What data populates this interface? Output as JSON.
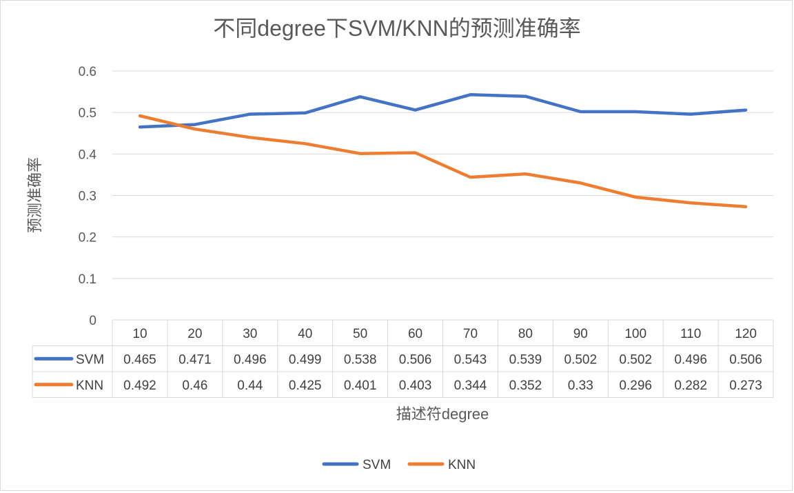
{
  "chart_data": {
    "type": "line",
    "title": "不同degree下SVM/KNN的预测准确率",
    "xlabel": "描述符degree",
    "ylabel": "预测准确率",
    "categories": [
      "10",
      "20",
      "30",
      "40",
      "50",
      "60",
      "70",
      "80",
      "90",
      "100",
      "110",
      "120"
    ],
    "ylim": [
      0,
      0.6
    ],
    "yticks": [
      "0",
      "0.1",
      "0.2",
      "0.3",
      "0.4",
      "0.5",
      "0.6"
    ],
    "grid": true,
    "legend_position": "bottom",
    "data_table": true,
    "series": [
      {
        "name": "SVM",
        "color": "#4472C4",
        "values": [
          0.465,
          0.471,
          0.496,
          0.499,
          0.538,
          0.506,
          0.543,
          0.539,
          0.502,
          0.502,
          0.496,
          0.506
        ],
        "labels": [
          "0.465",
          "0.471",
          "0.496",
          "0.499",
          "0.538",
          "0.506",
          "0.543",
          "0.539",
          "0.502",
          "0.502",
          "0.496",
          "0.506"
        ]
      },
      {
        "name": "KNN",
        "color": "#ED7D31",
        "values": [
          0.492,
          0.46,
          0.44,
          0.425,
          0.401,
          0.403,
          0.344,
          0.352,
          0.33,
          0.296,
          0.282,
          0.273
        ],
        "labels": [
          "0.492",
          "0.46",
          "0.44",
          "0.425",
          "0.401",
          "0.403",
          "0.344",
          "0.352",
          "0.33",
          "0.296",
          "0.282",
          "0.273"
        ]
      }
    ]
  }
}
